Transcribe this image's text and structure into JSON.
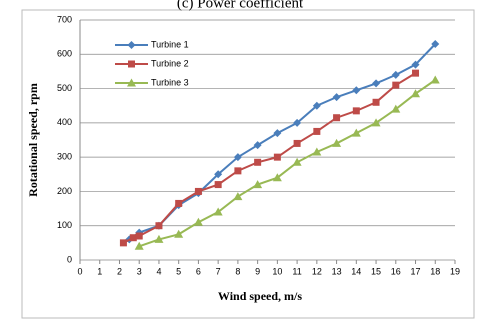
{
  "chart_data": {
    "type": "line",
    "title": "(c) Power coefficient",
    "x_label": "Wind speed, m/s",
    "y_label": "Rotational speed, rpm",
    "xlim": [
      0,
      19
    ],
    "xticks": [
      0,
      1,
      2,
      3,
      4,
      5,
      6,
      7,
      8,
      9,
      10,
      11,
      12,
      13,
      14,
      15,
      16,
      17,
      18,
      19
    ],
    "ylim": [
      0,
      700
    ],
    "yticks": [
      0,
      100,
      200,
      300,
      400,
      500,
      600,
      700
    ],
    "grid": true,
    "legend": "upper left",
    "series": [
      {
        "name": "Turbine 1",
        "color": "#4a7ebb",
        "marker": "diamond",
        "x": [
          2.5,
          3,
          4,
          5,
          6,
          7,
          8,
          9,
          10,
          11,
          12,
          13,
          14,
          15,
          16,
          17,
          18
        ],
        "values": [
          60,
          80,
          100,
          160,
          195,
          250,
          300,
          335,
          370,
          400,
          450,
          475,
          495,
          515,
          540,
          570,
          630
        ]
      },
      {
        "name": "Turbine 2",
        "color": "#be4b48",
        "marker": "square",
        "x": [
          2.2,
          2.7,
          3,
          4,
          5,
          6,
          7,
          8,
          9,
          10,
          11,
          12,
          13,
          14,
          15,
          16,
          17
        ],
        "values": [
          50,
          65,
          70,
          100,
          165,
          200,
          220,
          260,
          285,
          300,
          340,
          375,
          415,
          435,
          460,
          510,
          545
        ]
      },
      {
        "name": "Turbine 3",
        "color": "#98b954",
        "marker": "triangle",
        "x": [
          3,
          4,
          5,
          6,
          7,
          8,
          9,
          10,
          11,
          12,
          13,
          14,
          15,
          16,
          17,
          18
        ],
        "values": [
          40,
          60,
          75,
          110,
          140,
          185,
          220,
          240,
          285,
          315,
          340,
          370,
          400,
          440,
          485,
          525
        ]
      }
    ]
  }
}
